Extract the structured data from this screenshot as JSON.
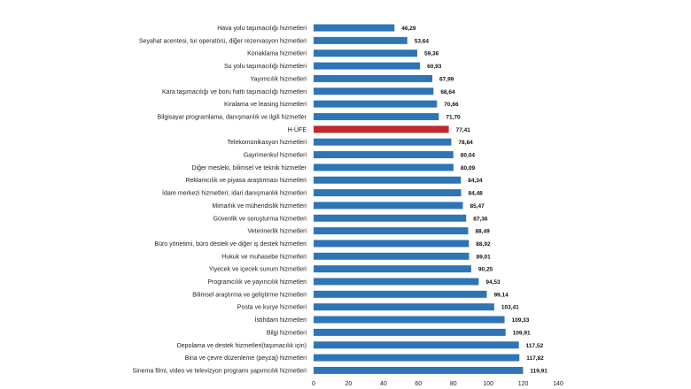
{
  "chart_data": {
    "type": "bar",
    "orientation": "horizontal",
    "title": "",
    "xlabel": "",
    "ylabel": "",
    "xlim": [
      0,
      140
    ],
    "x_ticks": [
      "0",
      "20",
      "40",
      "60",
      "80",
      "100",
      "120",
      "140"
    ],
    "grid": false,
    "bar_color": "#2e75b6",
    "highlight_color": "#c0282d",
    "highlight_category": "H-ÜFE",
    "categories": [
      "Hava yolu taşımacılığı hizmetleri",
      "Seyahat acentesi, tur operatörü, diğer rezervasyon hizmetleri",
      "Konaklama hizmetleri",
      "Su yolu taşımacılığı hizmetleri",
      "Yayımcılık hizmetleri",
      "Kara taşımacılığı ve boru hattı taşımacılığı hizmetleri",
      "Kiralama ve leasing hizmetleri",
      "Bilgisayar programlama, danışmanlık ve ilgili hizmetler",
      "H-ÜFE",
      "Telekomünikasyon hizmetleri",
      "Gayrimenkul hizmetleri",
      "Diğer mesleki, bilimsel ve teknik hizmetler",
      "Reklamcılık ve piyasa araştırması hizmetleri",
      "İdare merkezi hizmetleri; idari danışmanlık hizmetleri",
      "Mimarlık ve mühendislik hizmetleri",
      "Güvenlik ve soruşturma hizmetleri",
      "Veterinerlik hizmetleri",
      "Büro yönetimi, büro destek ve diğer iş destek hizmetleri",
      "Hukuk ve muhasebe hizmetleri",
      "Yiyecek ve içecek sunum hizmetleri",
      "Programcılık ve yayıncılık hizmetleri",
      "Bilimsel araştırma ve geliştirme hizmetleri",
      "Posta ve kurye hizmetleri",
      "İstihdam hizmetleri",
      "Bilgi hizmetleri",
      "Depolama ve destek hizmetleri(taşımacılık için)",
      "Bina ve çevre düzenleme (peyzaj) hizmetleri",
      "Sinema filmi, video ve televizyon programı yapımcılık hizmetleri"
    ],
    "values": [
      46.29,
      53.64,
      59.36,
      60.93,
      67.99,
      68.64,
      70.66,
      71.7,
      77.41,
      78.84,
      80.04,
      80.09,
      84.34,
      84.48,
      85.47,
      87.36,
      88.49,
      88.92,
      89.01,
      90.25,
      94.53,
      99.14,
      103.41,
      109.33,
      109.91,
      117.52,
      117.82,
      119.91
    ],
    "value_labels": [
      "46,29",
      "53,64",
      "59,36",
      "60,93",
      "67,99",
      "68,64",
      "70,66",
      "71,70",
      "77,41",
      "78,84",
      "80,04",
      "80,09",
      "84,34",
      "84,48",
      "85,47",
      "87,36",
      "88,49",
      "88,92",
      "89,01",
      "90,25",
      "94,53",
      "99,14",
      "103,41",
      "109,33",
      "109,91",
      "117,52",
      "117,82",
      "119,91"
    ]
  }
}
